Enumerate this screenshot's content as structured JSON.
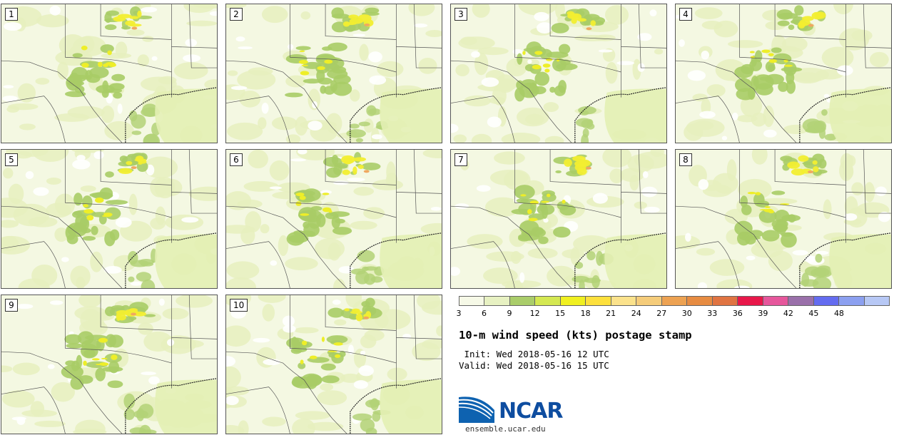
{
  "panels": [
    {
      "label": "1"
    },
    {
      "label": "2"
    },
    {
      "label": "3"
    },
    {
      "label": "4"
    },
    {
      "label": "5"
    },
    {
      "label": "6"
    },
    {
      "label": "7"
    },
    {
      "label": "8"
    },
    {
      "label": "9"
    },
    {
      "label": "10"
    }
  ],
  "colorbar": {
    "ticks": [
      "3",
      "6",
      "9",
      "12",
      "15",
      "18",
      "21",
      "24",
      "27",
      "30",
      "33",
      "36",
      "39",
      "42",
      "45",
      "48"
    ],
    "colors": [
      "#f6f9e7",
      "#e7f1c2",
      "#aacd6a",
      "#d4e852",
      "#f0f020",
      "#fde03c",
      "#fbe28c",
      "#f5cc7a",
      "#eda252",
      "#e78c42",
      "#e07442",
      "#e8174a",
      "#e6579c",
      "#9a70aa",
      "#646cf0",
      "#8ca0f0",
      "#b7c8f5"
    ]
  },
  "title": "10-m wind speed (kts) postage stamp",
  "init_line": " Init: Wed 2018-05-16 12 UTC",
  "valid_line": "Valid: Wed 2018-05-16 15 UTC",
  "logo": {
    "text": "NCAR",
    "icon": "ncar-swoosh-icon",
    "color": "#0e4da0"
  },
  "site": "ensemble.ucar.edu"
}
